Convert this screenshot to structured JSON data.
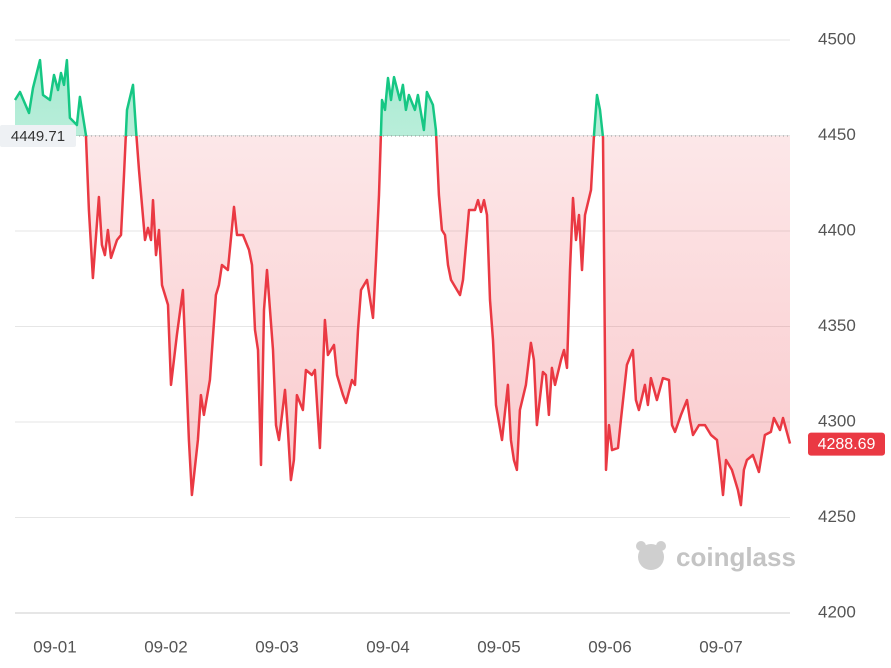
{
  "chart_data": {
    "type": "line",
    "x": [
      0.64,
      0.685,
      0.766,
      0.802,
      0.865,
      0.892,
      0.955,
      0.991,
      1.027,
      1.054,
      1.081,
      1.108,
      1.135,
      1.198,
      1.225,
      1.279,
      1.306,
      1.342,
      1.396,
      1.423,
      1.45,
      1.477,
      1.505,
      1.559,
      1.595,
      1.622,
      1.649,
      1.703,
      1.73,
      1.757,
      1.811,
      1.838,
      1.865,
      1.883,
      1.91,
      1.937,
      1.964,
      2.018,
      2.045,
      2.099,
      2.153,
      2.18,
      2.207,
      2.234,
      2.288,
      2.315,
      2.342,
      2.396,
      2.45,
      2.477,
      2.504,
      2.558,
      2.613,
      2.64,
      2.694,
      2.748,
      2.775,
      2.802,
      2.829,
      2.856,
      2.883,
      2.91,
      2.964,
      2.991,
      3.018,
      3.072,
      3.099,
      3.126,
      3.153,
      3.18,
      3.234,
      3.261,
      3.315,
      3.342,
      3.387,
      3.432,
      3.459,
      3.514,
      3.541,
      3.595,
      3.622,
      3.676,
      3.703,
      3.73,
      3.757,
      3.811,
      3.865,
      3.892,
      3.919,
      3.946,
      3.973,
      4.0,
      4.027,
      4.054,
      4.108,
      4.135,
      4.162,
      4.189,
      4.243,
      4.27,
      4.324,
      4.351,
      4.405,
      4.432,
      4.459,
      4.486,
      4.514,
      4.541,
      4.568,
      4.622,
      4.649,
      4.676,
      4.703,
      4.73,
      4.784,
      4.811,
      4.838,
      4.865,
      4.892,
      4.919,
      4.946,
      4.973,
      5.027,
      5.081,
      5.108,
      5.135,
      5.162,
      5.189,
      5.243,
      5.288,
      5.315,
      5.342,
      5.396,
      5.423,
      5.45,
      5.477,
      5.505,
      5.559,
      5.586,
      5.613,
      5.64,
      5.667,
      5.694,
      5.721,
      5.748,
      5.775,
      5.829,
      5.856,
      5.883,
      5.91,
      5.937,
      5.964,
      5.991,
      6.018,
      6.072,
      6.099,
      6.153,
      6.207,
      6.234,
      6.261,
      6.315,
      6.342,
      6.369,
      6.423,
      6.477,
      6.532,
      6.559,
      6.586,
      6.64,
      6.694,
      6.721,
      6.748,
      6.802,
      6.856,
      6.91,
      6.964,
      6.991,
      7.018,
      7.045,
      7.099,
      7.153,
      7.18,
      7.207,
      7.234,
      7.288,
      7.342,
      7.396,
      7.45,
      7.477,
      7.532,
      7.559,
      7.622
    ],
    "values": [
      4468.6,
      4472.8,
      4461.8,
      4474.9,
      4489.5,
      4471.2,
      4468.6,
      4481.7,
      4473.8,
      4482.7,
      4476.5,
      4489.5,
      4459.2,
      4455.5,
      4470.2,
      4450.3,
      4411.0,
      4375.4,
      4417.8,
      4392.7,
      4387.4,
      4400.5,
      4385.9,
      4395.3,
      4397.9,
      4429.3,
      4463.4,
      4476.5,
      4452.9,
      4431.9,
      4395.3,
      4401.6,
      4395.3,
      4416.2,
      4387.4,
      4400.5,
      4371.7,
      4361.3,
      4319.4,
      4345.6,
      4369.1,
      4329.9,
      4290.6,
      4261.8,
      4290.6,
      4314.1,
      4303.7,
      4322.0,
      4366.5,
      4371.7,
      4382.2,
      4379.6,
      4412.6,
      4397.9,
      4397.9,
      4390.1,
      4382.2,
      4348.2,
      4337.7,
      4277.5,
      4358.7,
      4379.6,
      4337.7,
      4298.4,
      4290.6,
      4316.8,
      4295.8,
      4269.6,
      4280.1,
      4314.1,
      4306.3,
      4327.2,
      4324.6,
      4327.2,
      4286.4,
      4353.4,
      4335.1,
      4340.3,
      4324.6,
      4314.1,
      4310.0,
      4322.0,
      4319.4,
      4348.2,
      4369.1,
      4374.4,
      4354.5,
      4384.8,
      4418.9,
      4468.6,
      4463.4,
      4480.1,
      4468.6,
      4480.6,
      4468.6,
      4476.5,
      4463.4,
      4471.2,
      4463.4,
      4471.2,
      4452.9,
      4472.8,
      4466.0,
      4452.9,
      4418.9,
      4400.5,
      4397.9,
      4382.2,
      4374.4,
      4369.1,
      4366.5,
      4374.4,
      4392.7,
      4411.0,
      4411.0,
      4416.2,
      4410.0,
      4416.2,
      4408.4,
      4363.9,
      4342.9,
      4308.9,
      4290.6,
      4319.4,
      4290.6,
      4280.1,
      4274.9,
      4306.3,
      4319.4,
      4341.4,
      4332.5,
      4298.4,
      4326.2,
      4324.6,
      4303.7,
      4328.3,
      4319.4,
      4332.5,
      4337.7,
      4328.3,
      4379.6,
      4417.3,
      4395.3,
      4408.4,
      4379.6,
      4408.4,
      4421.5,
      4450.3,
      4471.2,
      4463.4,
      4449.0,
      4274.9,
      4298.4,
      4285.3,
      4286.4,
      4301.1,
      4329.9,
      4337.7,
      4311.5,
      4306.3,
      4319.4,
      4308.9,
      4323.0,
      4311.5,
      4323.0,
      4322.0,
      4298.4,
      4294.8,
      4303.7,
      4311.5,
      4301.1,
      4293.2,
      4298.4,
      4298.4,
      4293.2,
      4290.6,
      4277.5,
      4261.8,
      4280.1,
      4274.9,
      4264.4,
      4256.5,
      4274.9,
      4280.1,
      4282.7,
      4273.8,
      4293.2,
      4294.8,
      4302.1,
      4295.8,
      4302.1,
      4288.69
    ],
    "baseline": 4449.71,
    "colors": {
      "above": "#16c784",
      "below": "#ea3943"
    },
    "xlim": [
      0.64,
      7.622
    ],
    "xticks": [
      {
        "value": 1,
        "label": "09-01"
      },
      {
        "value": 2,
        "label": "09-02"
      },
      {
        "value": 3,
        "label": "09-03"
      },
      {
        "value": 4,
        "label": "09-04"
      },
      {
        "value": 5,
        "label": "09-05"
      },
      {
        "value": 6,
        "label": "09-06"
      },
      {
        "value": 7,
        "label": "09-07"
      }
    ],
    "ylim": [
      4200,
      4500
    ],
    "yticks": [
      4200,
      4250,
      4300,
      4350,
      4400,
      4450,
      4500
    ],
    "grid": true,
    "watermark": "coinglass"
  }
}
